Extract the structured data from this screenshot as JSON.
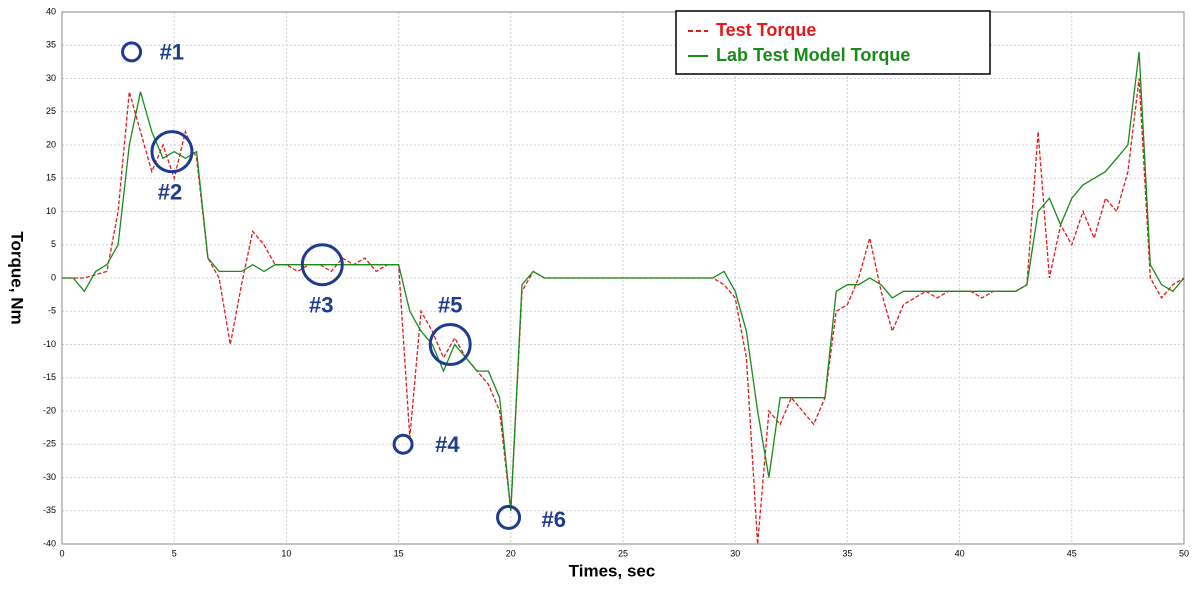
{
  "chart_data": {
    "type": "line",
    "xlabel": "Times, sec",
    "ylabel": "Torque, Nm",
    "x": [
      0,
      0.5,
      1,
      1.5,
      2,
      2.5,
      3,
      3.5,
      4,
      4.5,
      5,
      5.5,
      6,
      6.5,
      7,
      7.5,
      8,
      8.5,
      9,
      9.5,
      10,
      10.5,
      11,
      11.5,
      12,
      12.5,
      13,
      13.5,
      14,
      14.5,
      15,
      15.5,
      16,
      16.5,
      17,
      17.5,
      18,
      18.5,
      19,
      19.5,
      20,
      20.5,
      21,
      21.5,
      22,
      22.5,
      23,
      23.5,
      24,
      24.5,
      25,
      25.5,
      26,
      26.5,
      27,
      27.5,
      28,
      28.5,
      29,
      29.5,
      30,
      30.5,
      31,
      31.5,
      32,
      32.5,
      33,
      33.5,
      34,
      34.5,
      35,
      35.5,
      36,
      36.5,
      37,
      37.5,
      38,
      38.5,
      39,
      39.5,
      40,
      40.5,
      41,
      41.5,
      42,
      42.5,
      43,
      43.5,
      44,
      44.5,
      45,
      45.5,
      46,
      46.5,
      47,
      47.5,
      48,
      48.5,
      49,
      49.5,
      50
    ],
    "series": [
      {
        "name": "Test Torque",
        "color": "#e31a1c",
        "dashed": true,
        "values": [
          0,
          0,
          0,
          0.5,
          1,
          10,
          28,
          22,
          16,
          20,
          15,
          22,
          18,
          3,
          0,
          -10,
          -1,
          7,
          5,
          2,
          2,
          1,
          2,
          2,
          1,
          3,
          2,
          3,
          1,
          2,
          2,
          -24,
          -5,
          -8,
          -12,
          -9,
          -12,
          -14,
          -16,
          -20,
          -35,
          -2,
          1,
          0,
          0,
          0,
          0,
          0,
          0,
          0,
          0,
          0,
          0,
          0,
          0,
          0,
          0,
          0,
          0,
          -1,
          -3,
          -12,
          -40,
          -20,
          -22,
          -18,
          -20,
          -22,
          -18,
          -5,
          -4,
          0,
          6,
          -2,
          -8,
          -4,
          -3,
          -2,
          -3,
          -2,
          -2,
          -2,
          -3,
          -2,
          -2,
          -2,
          -1,
          22,
          0,
          8,
          5,
          10,
          6,
          12,
          10,
          16,
          30,
          0,
          -3,
          -1,
          0
        ]
      },
      {
        "name": "Lab Test Model Torque",
        "color": "#1a8a1a",
        "dashed": false,
        "values": [
          0,
          0,
          -2,
          1,
          2,
          5,
          20,
          28,
          22,
          18,
          19,
          18,
          19,
          3,
          1,
          1,
          1,
          2,
          1,
          2,
          2,
          2,
          2,
          2,
          2,
          2,
          2,
          2,
          2,
          2,
          2,
          -5,
          -8,
          -10,
          -14,
          -10,
          -12,
          -14,
          -14,
          -18,
          -35,
          -1,
          1,
          0,
          0,
          0,
          0,
          0,
          0,
          0,
          0,
          0,
          0,
          0,
          0,
          0,
          0,
          0,
          0,
          1,
          -2,
          -8,
          -20,
          -30,
          -18,
          -18,
          -18,
          -18,
          -18,
          -2,
          -1,
          -1,
          0,
          -1,
          -3,
          -2,
          -2,
          -2,
          -2,
          -2,
          -2,
          -2,
          -2,
          -2,
          -2,
          -2,
          -1,
          10,
          12,
          8,
          12,
          14,
          15,
          16,
          18,
          20,
          34,
          2,
          -1,
          -2,
          0
        ]
      }
    ],
    "xlim": [
      0,
      50
    ],
    "xticks": [
      0,
      5,
      10,
      15,
      20,
      25,
      30,
      35,
      40,
      45,
      50
    ],
    "ylim": [
      -40,
      40
    ],
    "yticks": [
      -40,
      -35,
      -30,
      -25,
      -20,
      -15,
      -10,
      -5,
      0,
      5,
      10,
      15,
      20,
      25,
      30,
      35,
      40
    ],
    "grid": true,
    "annotations": [
      {
        "text": "#1",
        "x": 3.1,
        "y": 34
      },
      {
        "text": "#2",
        "x": 4.9,
        "y": 19
      },
      {
        "text": "#3",
        "x": 11.6,
        "y": 2
      },
      {
        "text": "#4",
        "x": 15.2,
        "y": -25
      },
      {
        "text": "#5",
        "x": 17.3,
        "y": -10
      },
      {
        "text": "#6",
        "x": 19.9,
        "y": -36
      }
    ]
  }
}
